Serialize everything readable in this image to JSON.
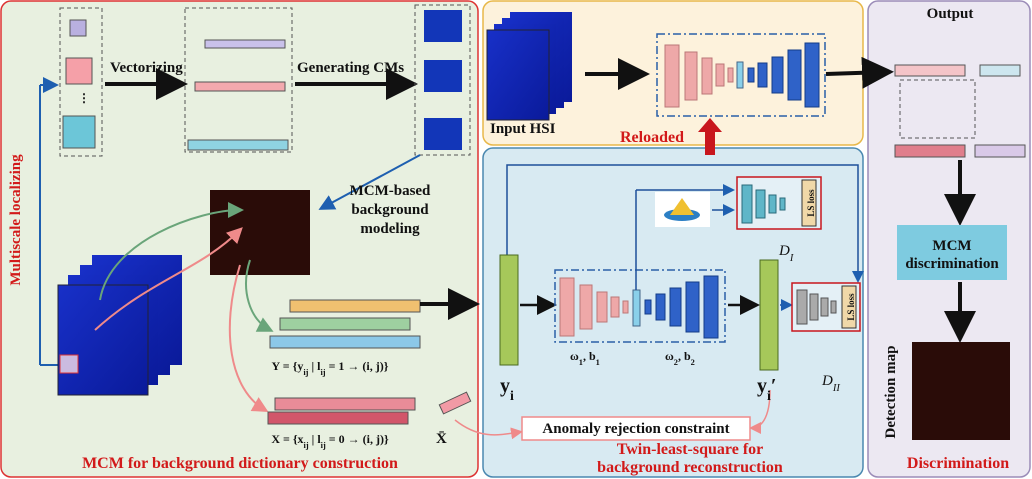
{
  "mcm_panel": {
    "title": "MCM for background dictionary construction",
    "vectorizing": "Vectorizing",
    "generating": "Generating CMs",
    "localizing": "Multiscale localizing",
    "modeling": [
      "MCM-based",
      "background",
      "modeling"
    ],
    "y_set": [
      "Y = {y",
      "ij",
      " | l",
      "ij",
      " = 1 → (i, j)}"
    ],
    "x_set": [
      "X = {x",
      "ij",
      " | l",
      "ij",
      " = 0 → (i, j)}"
    ],
    "x_bar": "X̄"
  },
  "reload_panel": {
    "input": "Input HSI",
    "reloaded": "Reloaded"
  },
  "twin_panel": {
    "title": [
      "Twin-least-square for",
      "background reconstruction"
    ],
    "d1": [
      "D",
      "I"
    ],
    "d2": [
      "D",
      "II"
    ],
    "ls_loss_1": "LS loss",
    "ls_loss_2": "LS loss",
    "w1": [
      "ω",
      "1",
      ", b",
      "1"
    ],
    "w2": [
      "ω",
      "2",
      ", b",
      "2"
    ],
    "yi": [
      "y",
      "i"
    ],
    "yi_prime": [
      "y",
      "i",
      "′"
    ],
    "anomaly": "Anomaly rejection constraint"
  },
  "disc_panel": {
    "output": "Output",
    "mcm_disc": [
      "MCM",
      "discrimination"
    ],
    "detection_map": "Detection map",
    "title": "Discrimination"
  }
}
